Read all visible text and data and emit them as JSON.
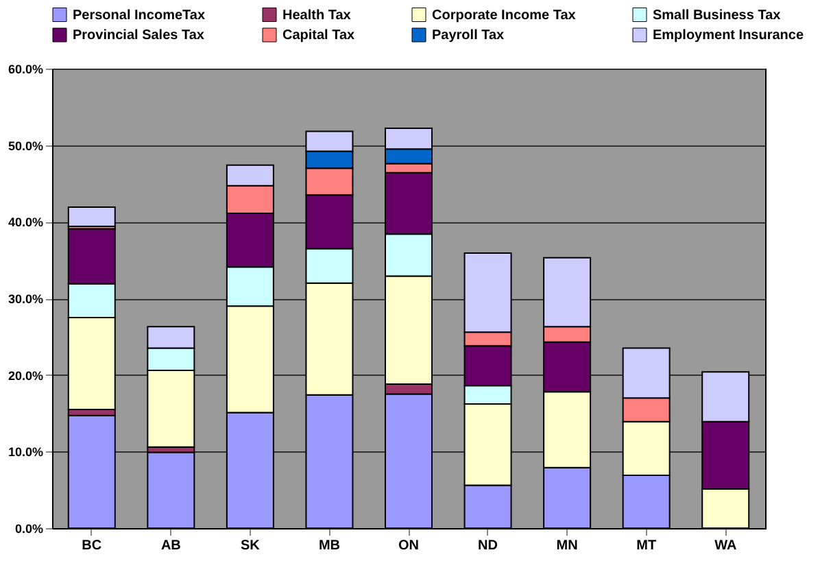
{
  "chart_data": {
    "type": "bar",
    "stacked": true,
    "categories": [
      "BC",
      "AB",
      "SK",
      "MB",
      "ON",
      "ND",
      "MN",
      "MT",
      "WA"
    ],
    "series": [
      {
        "name": "Personal IncomeTax",
        "color": "#9999ff",
        "values": [
          14.7,
          9.9,
          15.1,
          17.4,
          17.5,
          5.6,
          7.9,
          6.9,
          null
        ]
      },
      {
        "name": "Health Tax",
        "color": "#993366",
        "values": [
          0.8,
          0.7,
          null,
          null,
          1.3,
          null,
          null,
          null,
          null
        ]
      },
      {
        "name": "Corporate Income Tax",
        "color": "#ffffcc",
        "values": [
          12.0,
          10.0,
          13.9,
          14.6,
          14.1,
          10.6,
          9.9,
          7.0,
          5.1
        ]
      },
      {
        "name": "Small Business Tax",
        "color": "#ccffff",
        "values": [
          4.4,
          2.9,
          5.1,
          4.5,
          5.5,
          2.4,
          null,
          null,
          null
        ]
      },
      {
        "name": "Provincial Sales Tax",
        "color": "#660066",
        "values": [
          7.2,
          null,
          7.0,
          7.0,
          8.0,
          5.2,
          6.5,
          null,
          8.8
        ]
      },
      {
        "name": "Capital Tax",
        "color": "#ff8080",
        "values": [
          0.3,
          null,
          3.6,
          3.5,
          1.2,
          1.8,
          2.0,
          3.1,
          null
        ]
      },
      {
        "name": "Payroll Tax",
        "color": "#0066cc",
        "values": [
          null,
          null,
          null,
          2.2,
          1.9,
          null,
          null,
          null,
          null
        ]
      },
      {
        "name": "Employment Insurance",
        "color": "#ccccff",
        "values": [
          2.5,
          2.8,
          2.7,
          2.6,
          2.7,
          10.3,
          9.0,
          6.5,
          6.5
        ]
      }
    ],
    "ylim": [
      0,
      60
    ],
    "yticks": [
      {
        "value": 0,
        "label": "0.0%"
      },
      {
        "value": 10,
        "label": "10.0%"
      },
      {
        "value": 20,
        "label": "20.0%"
      },
      {
        "value": 30,
        "label": "30.0%"
      },
      {
        "value": 40,
        "label": "40.0%"
      },
      {
        "value": 50,
        "label": "50.0%"
      },
      {
        "value": 60,
        "label": "60.0%"
      }
    ],
    "grid": "y",
    "legend": "top"
  }
}
